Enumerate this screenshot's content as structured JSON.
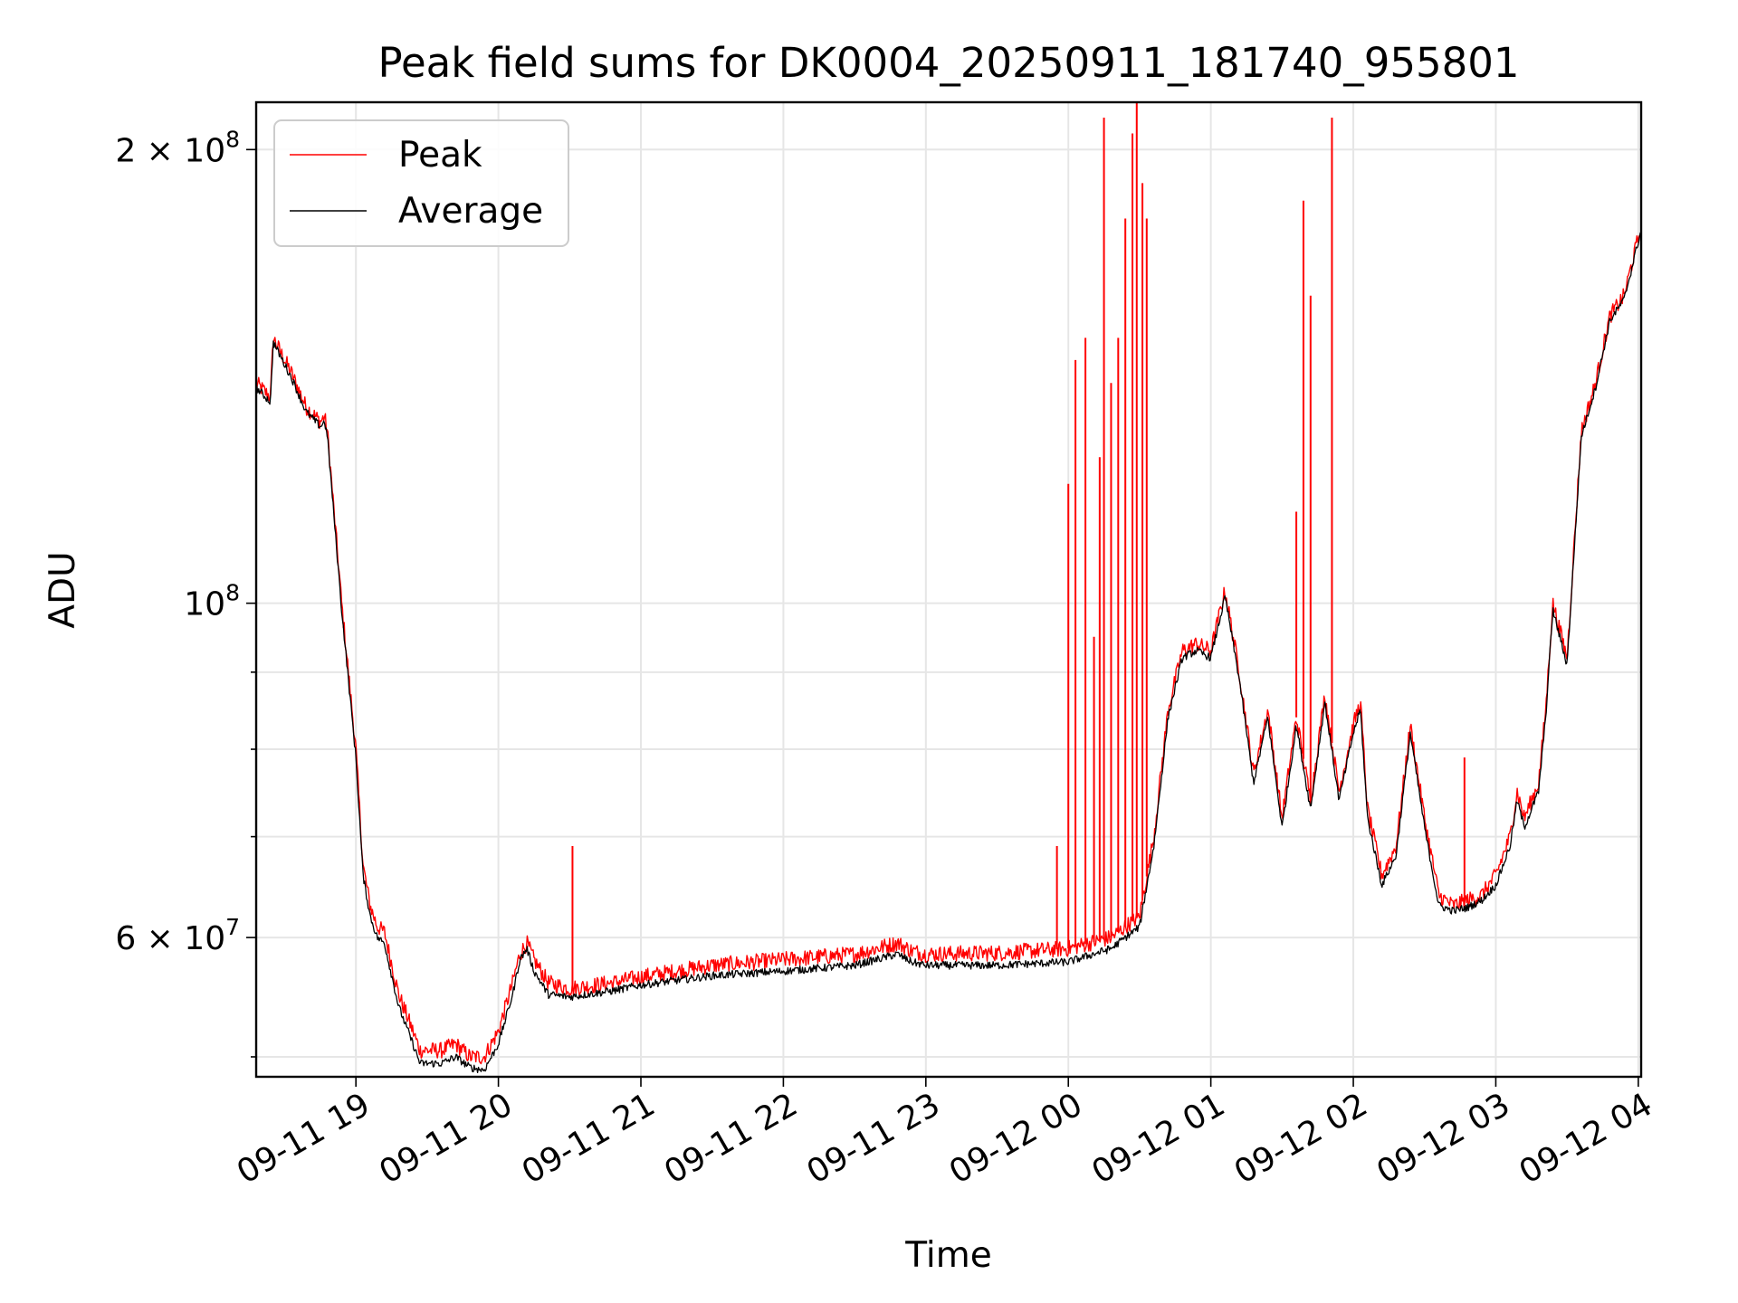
{
  "chart_data": {
    "type": "line",
    "title": "Peak field sums for DK0004_20250911_181740_955801",
    "xlabel": "Time",
    "ylabel": "ADU",
    "yscale": "log",
    "xlim_hours": [
      -0.7,
      9.02
    ],
    "ylim": [
      48500000,
      215000000
    ],
    "grid": true,
    "legend_position": "upper-left",
    "x_ticks": [
      {
        "hour": 0,
        "label": "09-11 19"
      },
      {
        "hour": 1,
        "label": "09-11 20"
      },
      {
        "hour": 2,
        "label": "09-11 21"
      },
      {
        "hour": 3,
        "label": "09-11 22"
      },
      {
        "hour": 4,
        "label": "09-11 23"
      },
      {
        "hour": 5,
        "label": "09-12 00"
      },
      {
        "hour": 6,
        "label": "09-12 01"
      },
      {
        "hour": 7,
        "label": "09-12 02"
      },
      {
        "hour": 8,
        "label": "09-12 03"
      },
      {
        "hour": 9,
        "label": "09-12 04"
      }
    ],
    "y_major_ticks": [
      {
        "value": 60000000,
        "base": "6 × 10",
        "exp": "7"
      },
      {
        "value": 100000000,
        "base": "10",
        "exp": "8"
      },
      {
        "value": 200000000,
        "base": "2 × 10",
        "exp": "8"
      }
    ],
    "y_minor_ticks": [
      50000000,
      70000000,
      80000000,
      90000000
    ],
    "x_unit_note": "hours after 2025-09-11 19:00",
    "series": [
      {
        "name": "Peak",
        "color": "#ff0000",
        "x": [
          -0.7,
          -0.6,
          -0.58,
          -0.45,
          -0.35,
          -0.25,
          -0.22,
          -0.2,
          -0.1,
          0.0,
          0.05,
          0.1,
          0.15,
          0.2,
          0.3,
          0.4,
          0.45,
          0.6,
          0.7,
          0.8,
          0.9,
          1.0,
          1.1,
          1.15,
          1.2,
          1.25,
          1.3,
          1.35,
          1.5,
          1.8,
          2.0,
          2.5,
          3.0,
          3.5,
          3.8,
          3.9,
          4.0,
          4.5,
          5.0,
          5.3,
          5.5,
          5.6,
          5.7,
          5.8,
          5.9,
          6.0,
          6.1,
          6.2,
          6.3,
          6.4,
          6.5,
          6.6,
          6.7,
          6.8,
          6.9,
          7.0,
          7.05,
          7.1,
          7.2,
          7.3,
          7.4,
          7.5,
          7.6,
          7.7,
          7.8,
          7.9,
          8.0,
          8.1,
          8.15,
          8.2,
          8.3,
          8.35,
          8.4,
          8.5,
          8.6,
          8.7,
          8.8,
          8.9,
          9.02
        ],
        "y": [
          140000000,
          137000000,
          150000000,
          142000000,
          135000000,
          132000000,
          133000000,
          130000000,
          100000000,
          80000000,
          67000000,
          63000000,
          61000000,
          60500000,
          55000000,
          52000000,
          50500000,
          50500000,
          51000000,
          50000000,
          50000000,
          52000000,
          56000000,
          58500000,
          59500000,
          58000000,
          57000000,
          56000000,
          55500000,
          56000000,
          56500000,
          57500000,
          58000000,
          58500000,
          59500000,
          58800000,
          58500000,
          58600000,
          59000000,
          60000000,
          62000000,
          70000000,
          85000000,
          93000000,
          94000000,
          93000000,
          102000000,
          90000000,
          77000000,
          85000000,
          72000000,
          84000000,
          74000000,
          87000000,
          75000000,
          83000000,
          86000000,
          73000000,
          66000000,
          69000000,
          83000000,
          72000000,
          64000000,
          63000000,
          63500000,
          64000000,
          66000000,
          70000000,
          75000000,
          72000000,
          76000000,
          85000000,
          100000000,
          92000000,
          130000000,
          140000000,
          155000000,
          160000000,
          178000000
        ]
      },
      {
        "name": "Average",
        "color": "#000000",
        "x": [
          -0.7,
          -0.6,
          -0.58,
          -0.45,
          -0.35,
          -0.25,
          -0.22,
          -0.2,
          -0.1,
          0.0,
          0.05,
          0.1,
          0.15,
          0.2,
          0.3,
          0.4,
          0.45,
          0.6,
          0.7,
          0.8,
          0.9,
          1.0,
          1.1,
          1.15,
          1.2,
          1.25,
          1.3,
          1.35,
          1.5,
          1.8,
          2.0,
          2.5,
          3.0,
          3.5,
          3.8,
          3.9,
          4.0,
          4.5,
          5.0,
          5.3,
          5.5,
          5.6,
          5.7,
          5.8,
          5.9,
          6.0,
          6.1,
          6.2,
          6.3,
          6.4,
          6.5,
          6.6,
          6.7,
          6.8,
          6.9,
          7.0,
          7.05,
          7.1,
          7.2,
          7.3,
          7.4,
          7.5,
          7.6,
          7.7,
          7.8,
          7.9,
          8.0,
          8.1,
          8.15,
          8.2,
          8.3,
          8.35,
          8.4,
          8.5,
          8.6,
          8.7,
          8.8,
          8.9,
          9.02
        ],
        "y": [
          139000000,
          136000000,
          149000000,
          141000000,
          134000000,
          131000000,
          132000000,
          129000000,
          99000000,
          79000000,
          66000000,
          62000000,
          60000000,
          59500000,
          54000000,
          51000000,
          49500000,
          49500000,
          50000000,
          49200000,
          49000000,
          51000000,
          55000000,
          58000000,
          59000000,
          57000000,
          56000000,
          55000000,
          54800000,
          55300000,
          55800000,
          56600000,
          57000000,
          57500000,
          58500000,
          57800000,
          57500000,
          57500000,
          57800000,
          59000000,
          61000000,
          69000000,
          84000000,
          92000000,
          93000000,
          92000000,
          101000000,
          89000000,
          76000000,
          84000000,
          71000000,
          83000000,
          73000000,
          86000000,
          74000000,
          82000000,
          85000000,
          72000000,
          65000000,
          68000000,
          82000000,
          71000000,
          63000000,
          62500000,
          62800000,
          63500000,
          65000000,
          69000000,
          74000000,
          71000000,
          75000000,
          84000000,
          99000000,
          91000000,
          129000000,
          139000000,
          154000000,
          159000000,
          177000000
        ]
      }
    ],
    "peak_spikes": [
      [
        1.52,
        69000000
      ],
      [
        4.92,
        69000000
      ],
      [
        5.0,
        120000000
      ],
      [
        5.05,
        145000000
      ],
      [
        5.12,
        150000000
      ],
      [
        5.18,
        95000000
      ],
      [
        5.22,
        125000000
      ],
      [
        5.25,
        210000000
      ],
      [
        5.3,
        140000000
      ],
      [
        5.35,
        150000000
      ],
      [
        5.4,
        180000000
      ],
      [
        5.45,
        205000000
      ],
      [
        5.48,
        215000000
      ],
      [
        5.52,
        190000000
      ],
      [
        5.55,
        180000000
      ],
      [
        6.6,
        115000000
      ],
      [
        6.65,
        185000000
      ],
      [
        6.7,
        160000000
      ],
      [
        6.85,
        210000000
      ],
      [
        7.78,
        79000000
      ]
    ],
    "legend": [
      {
        "label": "Peak",
        "color": "#ff0000"
      },
      {
        "label": "Average",
        "color": "#000000"
      }
    ]
  }
}
